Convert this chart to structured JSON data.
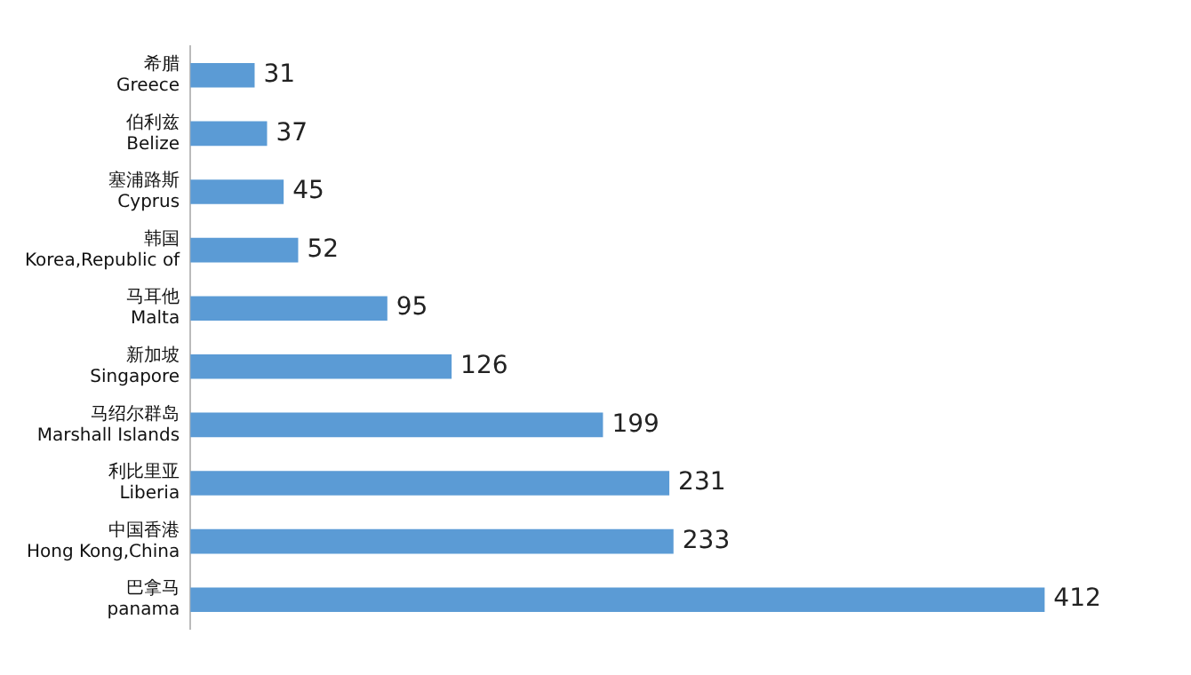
{
  "chart_data": {
    "type": "bar",
    "orientation": "horizontal",
    "categories": [
      "希腊\nGreece",
      "伯利兹\nBelize",
      "塞浦路斯\nCyprus",
      "韩国\nKorea,Republic of",
      "马耳他\nMalta",
      "新加坡\nSingapore",
      "马绍尔群岛\nMarshall Islands",
      "利比里亚\nLiberia",
      "中国香港\nHong Kong,China",
      "巴拿马\npanama"
    ],
    "values": [
      31,
      37,
      45,
      52,
      95,
      126,
      199,
      231,
      233,
      412
    ],
    "color": "#5b9bd5",
    "data_labels": true
  }
}
